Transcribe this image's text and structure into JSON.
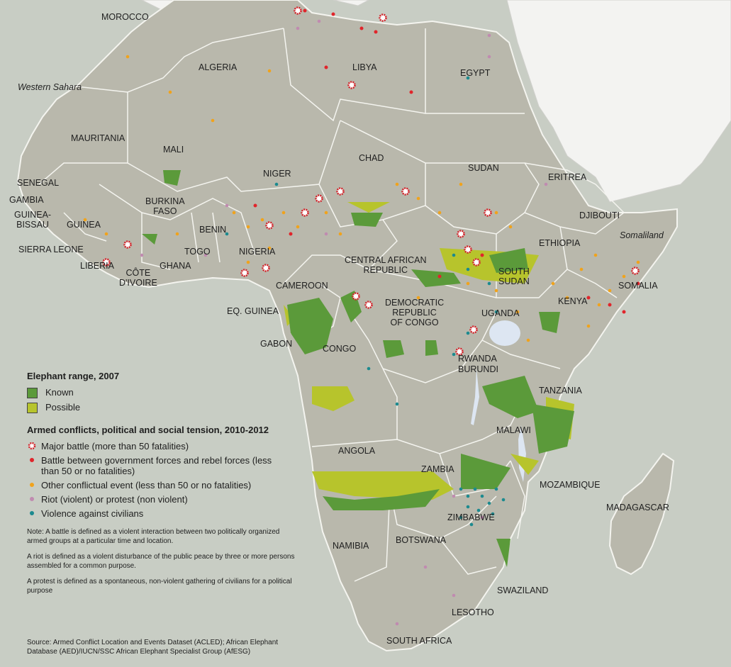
{
  "colors": {
    "sea": "#c8cdc4",
    "land": "#b9b8ac",
    "border": "#f4f4ef",
    "known": "#5b9a3a",
    "possible": "#b7c42c",
    "major_battle": "#d2232a",
    "battle": "#e0252b",
    "other_conflict": "#f0a31c",
    "riot": "#c08bb0",
    "violence_civilians": "#1c8a8f"
  },
  "labels": {
    "morocco": "MOROCCO",
    "western_sahara": "Western Sahara",
    "algeria": "ALGERIA",
    "libya": "LIBYA",
    "egypt": "EGYPT",
    "mauritania": "MAURITANIA",
    "mali": "MALI",
    "niger": "NIGER",
    "chad": "CHAD",
    "sudan": "SUDAN",
    "eritrea": "ERITREA",
    "djibouti": "DJIBOUTI",
    "somaliland": "Somaliland",
    "senegal": "SENEGAL",
    "gambia": "GAMBIA",
    "guinea_bissau": "GUINEA-\nBISSAU",
    "guinea": "GUINEA",
    "sierra_leone": "SIERRA LEONE",
    "liberia": "LIBERIA",
    "cote_divoire": "CÔTE\nD'IVOIRE",
    "burkina_faso": "BURKINA\nFASO",
    "ghana": "GHANA",
    "togo": "TOGO",
    "benin": "BENIN",
    "nigeria": "NIGERIA",
    "cameroon": "CAMEROON",
    "car": "CENTRAL AFRICAN\nREPUBLIC",
    "south_sudan": "SOUTH\nSUDAN",
    "ethiopia": "ETHIOPIA",
    "somalia": "SOMALIA",
    "kenya": "KENYA",
    "uganda": "UGANDA",
    "drc": "DEMOCRATIC\nREPUBLIC\nOF CONGO",
    "eq_guinea": "EQ. GUINEA",
    "gabon": "GABON",
    "congo": "CONGO",
    "rwanda": "RWANDA",
    "burundi": "BURUNDI",
    "tanzania": "TANZANIA",
    "angola": "ANGOLA",
    "zambia": "ZAMBIA",
    "malawi": "MALAWI",
    "mozambique": "MOZAMBIQUE",
    "madagascar": "MADAGASCAR",
    "zimbabwe": "ZIMBABWE",
    "namibia": "NAMIBIA",
    "botswana": "BOTSWANA",
    "swaziland": "SWAZILAND",
    "lesotho": "LESOTHO",
    "south_africa": "SOUTH AFRICA"
  },
  "legend": {
    "range_title": "Elephant range, 2007",
    "known": "Known",
    "possible": "Possible",
    "conflict_title": "Armed conflicts, political and social tension, 2010-2012",
    "major_battle": "Major battle (more than 50 fatalities)",
    "battle": "Battle between government forces and rebel forces (less than 50 or no fatalities)",
    "other": "Other conflictual event (less than 50 or no fatalities)",
    "riot": "Riot (violent) or protest (non violent)",
    "violence": "Violence against civilians",
    "note1": "Note:  A battle is defined as a violent interaction between two politically organized armed groups at a particular time and location.",
    "note2": "A riot is defined as a violent disturbance of the public peace by three or more persons assembled for a common purpose.",
    "note3": "A protest is defined as a spontaneous, non-violent gathering of civilians for a political purpose"
  },
  "source": "Source: Armed Conflict Location and Events Dataset (ACLED); African Elephant Database (AED)/IUCN/SSC African Elephant Specialist Group (AfESG)"
}
